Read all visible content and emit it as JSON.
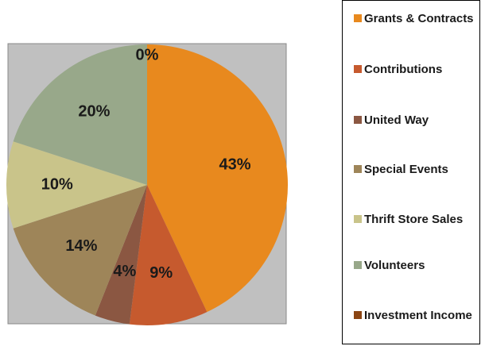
{
  "chart_data": {
    "type": "pie",
    "categories": [
      "Grants & Contracts",
      "Contributions",
      "United Way",
      "Special Events",
      "Thrift Store Sales",
      "Volunteers",
      "Investment Income"
    ],
    "values": [
      43,
      9,
      4,
      14,
      10,
      20,
      0
    ],
    "value_labels": [
      "43%",
      "9%",
      "4%",
      "14%",
      "10%",
      "20%",
      "0%"
    ],
    "colors": [
      "#e8891e",
      "#c65a2e",
      "#8b5742",
      "#9e8559",
      "#c9c48a",
      "#98a88a",
      "#8b4513"
    ],
    "legend": "right"
  }
}
